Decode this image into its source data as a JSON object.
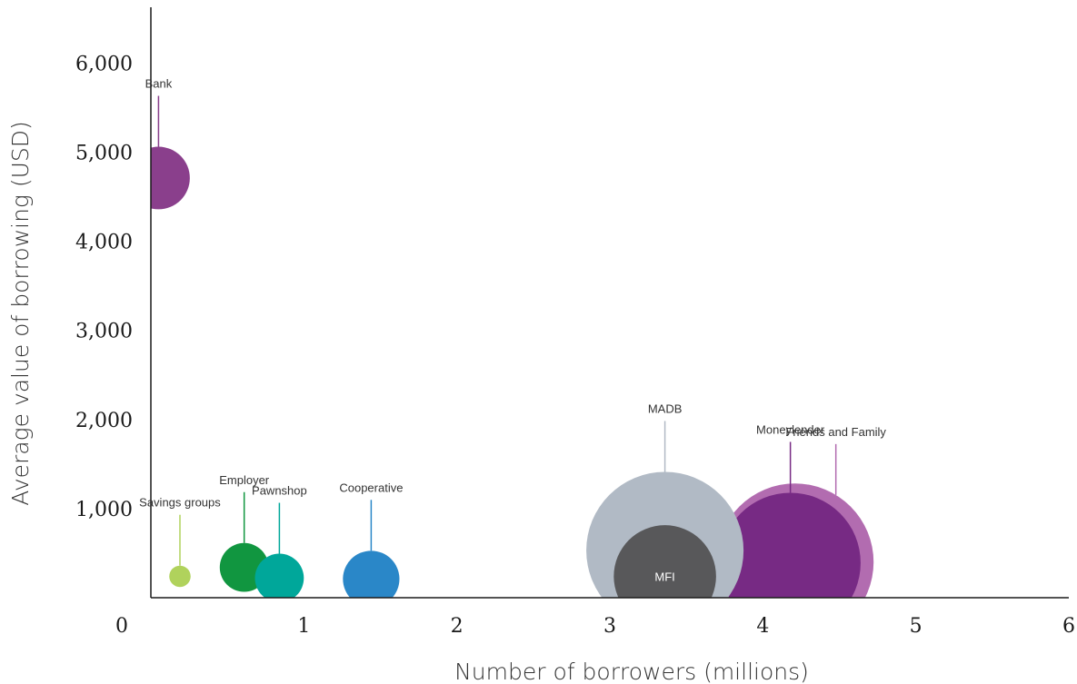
{
  "chart_data": {
    "type": "bubble",
    "xlabel": "Number of borrowers (millions)",
    "ylabel": "Average value of borrowing (USD)",
    "xlim": [
      0,
      6
    ],
    "ylim": [
      0,
      6300
    ],
    "xticks": [
      {
        "value": 0,
        "label": "0"
      },
      {
        "value": 1,
        "label": "1"
      },
      {
        "value": 2,
        "label": "2"
      },
      {
        "value": 3,
        "label": "3"
      },
      {
        "value": 4,
        "label": "4"
      },
      {
        "value": 5,
        "label": "5"
      },
      {
        "value": 6,
        "label": "6"
      }
    ],
    "yticks": [
      {
        "value": 1000,
        "label": "1,000"
      },
      {
        "value": 2000,
        "label": "2,000"
      },
      {
        "value": 3000,
        "label": "3,000"
      },
      {
        "value": 4000,
        "label": "4,000"
      },
      {
        "value": 5000,
        "label": "5,000"
      },
      {
        "value": 6000,
        "label": "6,000"
      }
    ],
    "grid": false,
    "series": [
      {
        "name": "Bank",
        "x": 0.05,
        "y": 4710,
        "size_millions": 0.41,
        "color": "#8a3f8c",
        "label_position": "above"
      },
      {
        "name": "Savings groups",
        "x": 0.19,
        "y": 240,
        "size_millions": 0.14,
        "color": "#b0d25c",
        "label_position": "above"
      },
      {
        "name": "Employer",
        "x": 0.61,
        "y": 340,
        "size_millions": 0.32,
        "color": "#119640",
        "label_position": "above"
      },
      {
        "name": "Pawnshop",
        "x": 0.84,
        "y": 220,
        "size_millions": 0.32,
        "color": "#00a79a",
        "label_position": "above"
      },
      {
        "name": "Cooperative",
        "x": 1.44,
        "y": 210,
        "size_millions": 0.37,
        "color": "#2a87c8",
        "label_position": "above"
      },
      {
        "name": "Friends and Family",
        "x": 4.21,
        "y": 400,
        "size_millions": 1.03,
        "color": "#b26cb0",
        "label_position": "above"
      },
      {
        "name": "Moneylender",
        "x": 4.18,
        "y": 390,
        "size_millions": 0.92,
        "color": "#772a84",
        "label_position": "above"
      },
      {
        "name": "MADB",
        "x": 3.36,
        "y": 530,
        "size_millions": 1.03,
        "color": "#b1bac5",
        "label_position": "above"
      },
      {
        "name": "MFI",
        "x": 3.36,
        "y": 240,
        "size_millions": 0.67,
        "color": "#58585a",
        "label_position": "inside"
      }
    ]
  }
}
